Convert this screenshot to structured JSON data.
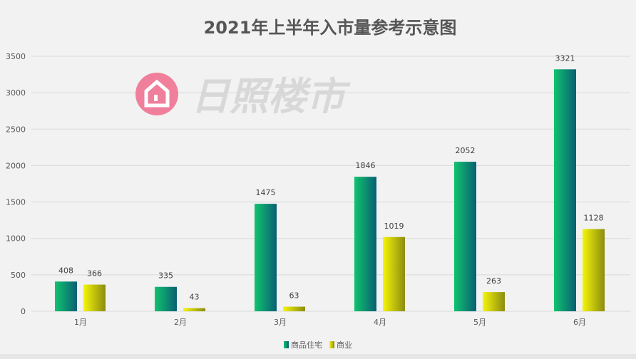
{
  "chart_data": {
    "type": "bar",
    "title": "2021年上半年入市量参考示意图",
    "categories": [
      "1月",
      "2月",
      "3月",
      "4月",
      "5月",
      "6月"
    ],
    "series": [
      {
        "name": "商品住宅",
        "values": [
          408,
          335,
          1475,
          1846,
          2052,
          3321
        ],
        "color_top": "#10c36e",
        "color_dark": "#0a5f73"
      },
      {
        "name": "商业",
        "values": [
          366,
          43,
          63,
          1019,
          263,
          1128
        ],
        "color_top": "#f5f50a",
        "color_dark": "#8c8c10"
      }
    ],
    "ylim": [
      0,
      3500
    ],
    "yticks": [
      0,
      500,
      1000,
      1500,
      2000,
      2500,
      3000,
      3500
    ],
    "grid": true,
    "legend": "bottom",
    "data_labels": true
  },
  "watermark": {
    "text": "日照楼市",
    "logo_color": "#f07f9c",
    "text_color": "#d4d4d4"
  }
}
